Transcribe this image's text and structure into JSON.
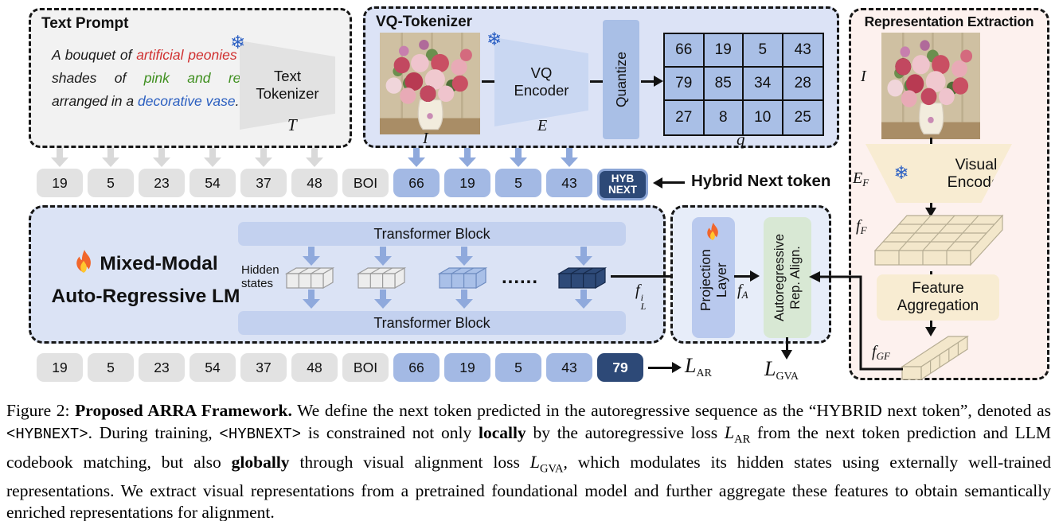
{
  "colors": {
    "panel_gray": "#f2f2f2",
    "panel_blue": "#dce3f6",
    "panel_pink": "#fdf1ee",
    "panel_lm": "#dbe3f5",
    "panel_align": "#e7edf9",
    "token_gray": "#e2e2e2",
    "token_blue": "#a3b9e4",
    "token_dark": "#2d4977",
    "cell_blue": "#a9bfe6",
    "bar_blue": "#c3d1ef",
    "proj_blue": "#b9c9ee",
    "align_green": "#d8e8d4",
    "beige": "#f8ecd2",
    "cube_beige": "#f3e7cb",
    "accent_snow": "#2f62c4",
    "arrow_blue": "#8fa9dc",
    "arrow_gray": "#d9d9d9",
    "prompt_red": "#d03030",
    "prompt_green": "#3f8f1f",
    "prompt_blue": "#2b5fc0"
  },
  "icons": {
    "snowflake": "❄"
  },
  "panels": {
    "text_prompt": {
      "title": "Text Prompt",
      "tokenizer_label": "Text Tokenizer",
      "symbol": "T"
    },
    "vq": {
      "title": "VQ-Tokenizer",
      "image_label": "I",
      "encoder_label": "VQ Encoder",
      "encoder_symbol": "E",
      "quantize": "Quantize",
      "grid": [
        [
          "66",
          "19",
          "5",
          "43"
        ],
        [
          "79",
          "85",
          "34",
          "28"
        ],
        [
          "27",
          "8",
          "10",
          "25"
        ]
      ],
      "grid_label": "q"
    },
    "rep": {
      "title": "Representation Extraction",
      "image_label": "I",
      "encoder_label": "Visual Encoder",
      "encoder_sym": "E",
      "encoder_sym_sub": "F",
      "ff": "f",
      "ff_sub": "F",
      "agg1": "Feature",
      "agg2": "Aggregation",
      "fgf": "f",
      "fgf_sub": "GF"
    },
    "lm": {
      "title1": "Mixed-Modal",
      "title2": "Auto-Regressive LM",
      "block_top": "Transformer Block",
      "block_bottom": "Transformer Block",
      "hidden1": "Hidden",
      "hidden2": "states",
      "dots": "......",
      "fl": "f",
      "fl_sub": "L",
      "fl_sup": "i"
    },
    "align": {
      "proj1": "Projection",
      "proj2": "Layer",
      "ara1": "Autoregressive",
      "ara2": "Rep. Align.",
      "fa": "f",
      "fa_sub": "A"
    }
  },
  "prompt_segments": [
    {
      "t": "A bouquet of ",
      "c": "k"
    },
    {
      "t": "artificial peonies",
      "c": "r"
    },
    {
      "t": " in shades of ",
      "c": "k"
    },
    {
      "t": "pink and red",
      "c": "g"
    },
    {
      "t": ", arranged in a ",
      "c": "k"
    },
    {
      "t": "decorative vase",
      "c": "b"
    },
    {
      "t": ".",
      "c": "k"
    }
  ],
  "tokens": {
    "row1": [
      {
        "t": "19",
        "k": "gray",
        "a": "g"
      },
      {
        "t": "5",
        "k": "gray",
        "a": "g"
      },
      {
        "t": "23",
        "k": "gray",
        "a": "g"
      },
      {
        "t": "54",
        "k": "gray",
        "a": "g"
      },
      {
        "t": "37",
        "k": "gray",
        "a": "g"
      },
      {
        "t": "48",
        "k": "gray",
        "a": "g"
      },
      {
        "t": "BOI",
        "k": "gray"
      },
      {
        "t": "66",
        "k": "blue",
        "a": "b"
      },
      {
        "t": "19",
        "k": "blue",
        "a": "b"
      },
      {
        "t": "5",
        "k": "blue",
        "a": "b"
      },
      {
        "t": "43",
        "k": "blue",
        "a": "b"
      },
      {
        "t": "HYB NEXT",
        "k": "hyb"
      }
    ],
    "row2": [
      {
        "t": "19",
        "k": "gray"
      },
      {
        "t": "5",
        "k": "gray"
      },
      {
        "t": "23",
        "k": "gray"
      },
      {
        "t": "54",
        "k": "gray"
      },
      {
        "t": "37",
        "k": "gray"
      },
      {
        "t": "48",
        "k": "gray"
      },
      {
        "t": "BOI",
        "k": "gray"
      },
      {
        "t": "66",
        "k": "blue"
      },
      {
        "t": "19",
        "k": "blue"
      },
      {
        "t": "5",
        "k": "blue"
      },
      {
        "t": "43",
        "k": "blue"
      },
      {
        "t": "79",
        "k": "dark"
      }
    ],
    "hybrid_note": "Hybrid Next token"
  },
  "losses": {
    "ar": "L",
    "ar_sub": "AR",
    "gva": "L",
    "gva_sub": "GVA"
  },
  "caption": {
    "segments": [
      {
        "t": "Figure 2: ",
        "s": "r"
      },
      {
        "t": "Proposed ARRA Framework.",
        "s": "b"
      },
      {
        "t": " We define the next token predicted in the autoregressive sequence as the “HYBRID next token”, denoted as ",
        "s": "r"
      },
      {
        "t": "<HYBNEXT>",
        "s": "m"
      },
      {
        "t": ". During training, ",
        "s": "r"
      },
      {
        "t": "<HYBNEXT>",
        "s": "m"
      },
      {
        "t": " is constrained not only ",
        "s": "r"
      },
      {
        "t": "locally",
        "s": "b"
      },
      {
        "t": " by the autoregressive loss ",
        "s": "r"
      },
      {
        "t": "L",
        "s": "cal"
      },
      {
        "t": "AR",
        "s": "sub"
      },
      {
        "t": " from the next token prediction and LLM codebook matching, but also ",
        "s": "r"
      },
      {
        "t": "globally",
        "s": "b"
      },
      {
        "t": " through visual alignment loss ",
        "s": "r"
      },
      {
        "t": "L",
        "s": "cal"
      },
      {
        "t": "GVA",
        "s": "sub"
      },
      {
        "t": ", which modulates its hidden states using externally well-trained representations. We extract visual representations from a pretrained foundational model and further aggregate these features to obtain semantically enriched representations for alignment.",
        "s": "r"
      }
    ]
  }
}
